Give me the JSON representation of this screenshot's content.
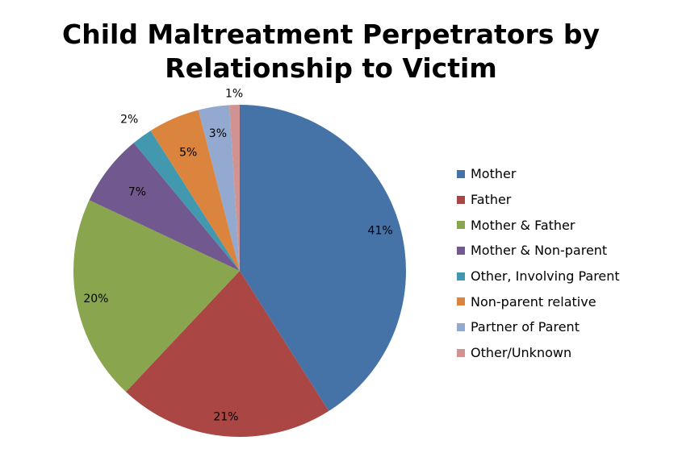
{
  "chart_data": {
    "type": "pie",
    "title_lines": [
      "Child Maltreatment Perpetrators by",
      "Relationship to Victim"
    ],
    "legend_position": "right",
    "slices": [
      {
        "name": "Mother",
        "value": 41,
        "label": "41%",
        "color": "#4572A7"
      },
      {
        "name": "Father",
        "value": 21,
        "label": "21%",
        "color": "#AA4643"
      },
      {
        "name": "Mother & Father",
        "value": 20,
        "label": "20%",
        "color": "#89A54E"
      },
      {
        "name": "Mother & Non-parent",
        "value": 7,
        "label": "7%",
        "color": "#71588F"
      },
      {
        "name": "Other, Involving Parent",
        "value": 2,
        "label": "2%",
        "color": "#4198AF"
      },
      {
        "name": "Non-parent relative",
        "value": 5,
        "label": "5%",
        "color": "#DB843D"
      },
      {
        "name": "Partner of Parent",
        "value": 3,
        "label": "3%",
        "color": "#93A9CF"
      },
      {
        "name": "Other/Unknown",
        "value": 1,
        "label": "1%",
        "color": "#D19392"
      }
    ]
  }
}
